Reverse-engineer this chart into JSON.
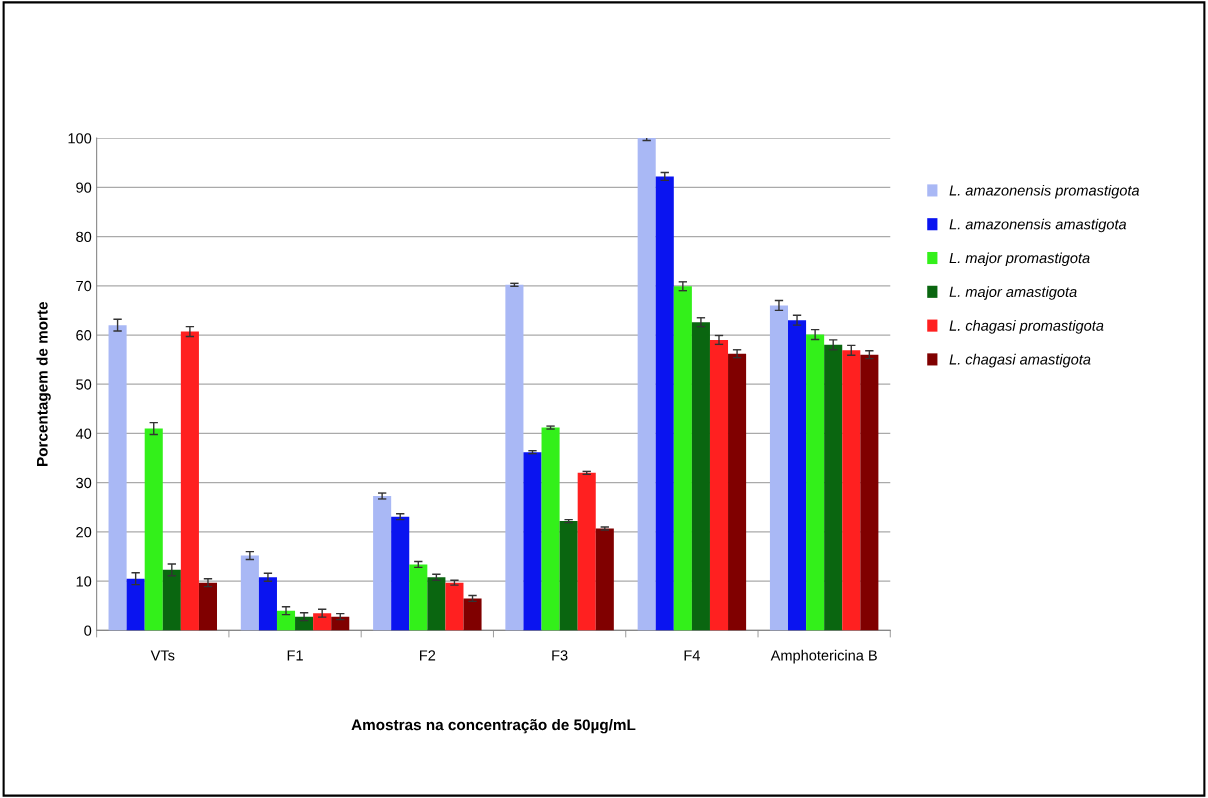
{
  "chart_data": {
    "type": "bar",
    "xlabel": "Amostras na concentração de 50µg/mL",
    "ylabel": "Porcentagem de morte",
    "categories": [
      "VTs",
      "F1",
      "F2",
      "F3",
      "F4",
      "Amphotericina B"
    ],
    "series": [
      {
        "name": "L. amazonensis promastigota",
        "color": "#a9b8f5",
        "values": [
          62,
          15.2,
          27.3,
          70.2,
          100,
          66
        ],
        "errors": [
          1.2,
          0.8,
          0.6,
          0.3,
          0.5,
          1
        ]
      },
      {
        "name": "L. amazonensis amastigota",
        "color": "#0a14f0",
        "values": [
          10.5,
          10.8,
          23.1,
          36.2,
          92.2,
          63
        ],
        "errors": [
          1.2,
          0.8,
          0.6,
          0.3,
          0.8,
          1
        ]
      },
      {
        "name": "L. major promastigota",
        "color": "#33f01a",
        "values": [
          41,
          4,
          13.4,
          41.2,
          69.9,
          60.1
        ],
        "errors": [
          1.2,
          0.8,
          0.6,
          0.3,
          0.9,
          1
        ]
      },
      {
        "name": "L. major amastigota",
        "color": "#0a6610",
        "values": [
          12.3,
          2.8,
          10.8,
          22.2,
          62.6,
          58
        ],
        "errors": [
          1.2,
          0.8,
          0.6,
          0.3,
          0.9,
          1
        ]
      },
      {
        "name": "L. chagasi promastigota",
        "color": "#ff2020",
        "values": [
          60.7,
          3.5,
          9.7,
          32,
          59,
          56.9
        ],
        "errors": [
          1,
          0.8,
          0.5,
          0.3,
          0.9,
          1
        ]
      },
      {
        "name": "L. chagasi amastigota",
        "color": "#800000",
        "values": [
          9.7,
          2.8,
          6.5,
          20.7,
          56.2,
          56
        ],
        "errors": [
          0.8,
          0.6,
          0.6,
          0.3,
          0.8,
          0.8
        ]
      }
    ],
    "ylim": [
      0,
      100
    ],
    "yticks": [
      0,
      10,
      20,
      30,
      40,
      50,
      60,
      70,
      80,
      90,
      100
    ],
    "grid": "y",
    "legend": "right"
  }
}
